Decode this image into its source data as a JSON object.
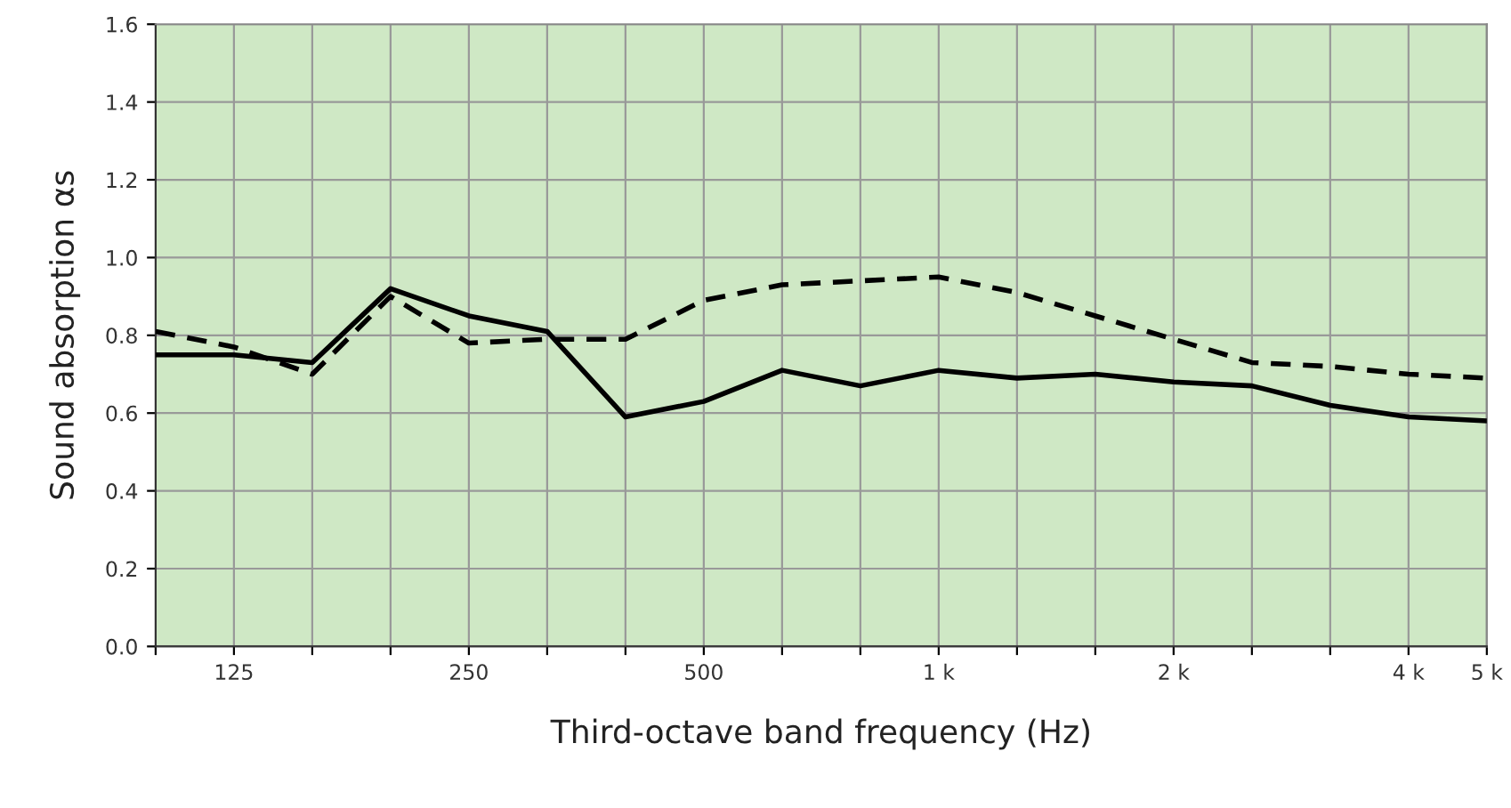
{
  "chart_data": {
    "type": "line",
    "xlabel": "Third-octave band frequency (Hz)",
    "ylabel": "Sound absorption αs",
    "categories": [
      null,
      "125",
      null,
      null,
      "250",
      null,
      null,
      "500",
      null,
      null,
      "1 k",
      null,
      null,
      "2 k",
      null,
      null,
      "4 k",
      "5 k"
    ],
    "series": [
      {
        "color": "#000000",
        "line_style": "solid",
        "values": [
          0.75,
          0.75,
          0.73,
          0.92,
          0.85,
          0.81,
          0.59,
          0.63,
          0.71,
          0.67,
          0.71,
          0.69,
          0.7,
          0.68,
          0.67,
          0.62,
          0.59,
          0.58
        ]
      },
      {
        "color": "#000000",
        "line_style": "dashed",
        "values": [
          0.81,
          0.77,
          0.7,
          0.9,
          0.78,
          0.79,
          0.79,
          0.89,
          0.93,
          0.94,
          0.95,
          0.91,
          0.85,
          0.79,
          0.73,
          0.72,
          0.7,
          0.69
        ]
      }
    ],
    "ylim": [
      0,
      1.6
    ],
    "yticks": [
      {
        "value": 0,
        "label": "0.0"
      },
      0.2,
      0.4,
      0.6,
      0.8,
      {
        "value": 1,
        "label": "1.0"
      },
      1.2,
      1.4,
      1.6
    ],
    "grid": true,
    "marker": "none"
  }
}
